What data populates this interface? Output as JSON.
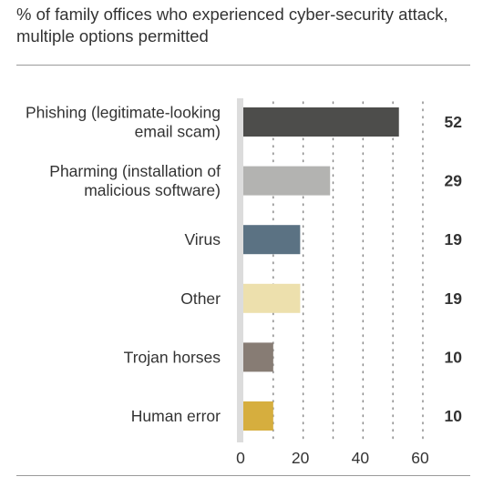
{
  "title_lines": [
    "% of family offices who experienced cyber-security attack,",
    "multiple options permitted"
  ],
  "chart_data": {
    "type": "bar",
    "orientation": "horizontal",
    "title": "% of family offices who experienced cyber-security attack, multiple options permitted",
    "categories": [
      [
        "Phishing (legitimate-looking",
        "email scam)"
      ],
      [
        "Pharming (installation of",
        "malicious software)"
      ],
      [
        "Virus"
      ],
      [
        "Other"
      ],
      [
        "Trojan horses"
      ],
      [
        "Human error"
      ]
    ],
    "values": [
      52,
      29,
      19,
      19,
      10,
      10
    ],
    "value_labels": [
      "52",
      "29",
      "19",
      "19",
      "10",
      "10"
    ],
    "colors": [
      "#4d4d4b",
      "#b3b3b1",
      "#5b7283",
      "#ede0ad",
      "#877c74",
      "#d6ae3e"
    ],
    "xlim": [
      0,
      60
    ],
    "xticks": [
      0,
      20,
      40,
      60
    ],
    "tick_labels": [
      "0",
      "20",
      "40",
      "60"
    ],
    "grid": "vertical-dotted",
    "xlabel": "",
    "ylabel": ""
  }
}
